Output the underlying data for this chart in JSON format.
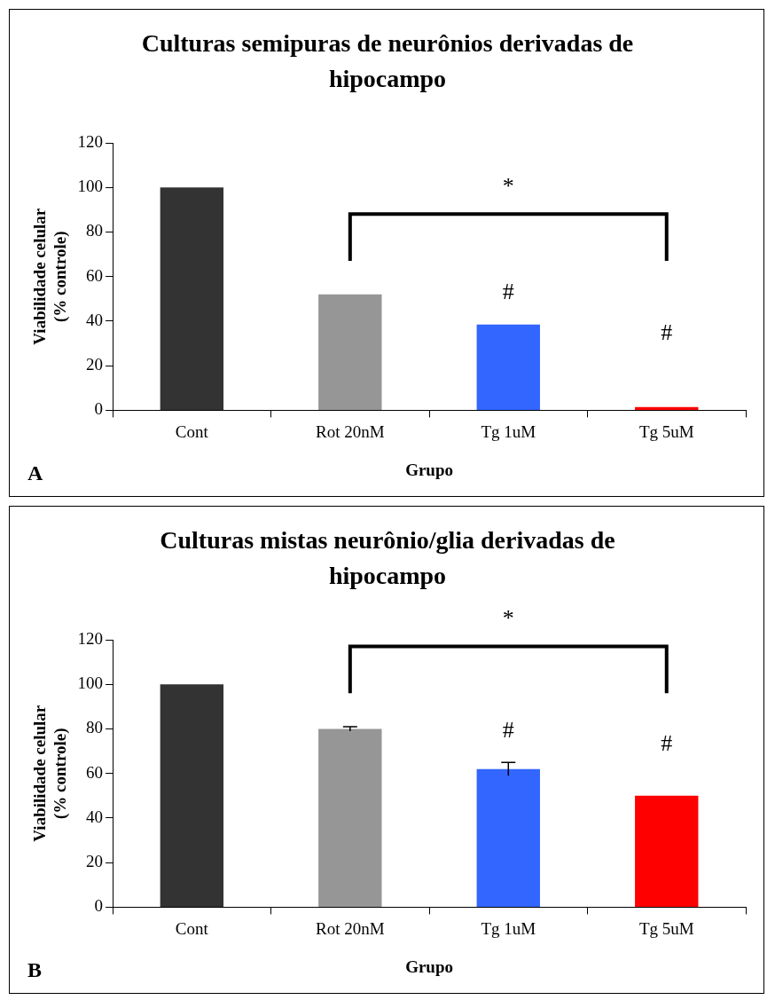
{
  "chart_data": [
    {
      "type": "bar",
      "title": "Culturas semipuras de neurônios derivadas de hipocampo",
      "xlabel": "Grupo",
      "ylabel": "Viabilidade celular (% controle)",
      "categories": [
        "Cont",
        "Rot 20nM",
        "Tg 1uM",
        "Tg 5uM"
      ],
      "values": [
        100,
        52,
        38.5,
        1.5
      ],
      "colors": [
        "#333333",
        "#969696",
        "#3366ff",
        "#ff0000"
      ],
      "ylim": [
        0,
        120
      ],
      "yticks": [
        0,
        20,
        40,
        60,
        80,
        100,
        120
      ],
      "grid": false,
      "annotations": [
        "*",
        "#",
        "#",
        "A"
      ]
    },
    {
      "type": "bar",
      "title": "Culturas mistas neurônio/glia derivadas de hipocampo",
      "xlabel": "Grupo",
      "ylabel": "Viabilidade celular (% controle)",
      "categories": [
        "Cont",
        "Rot 20nM",
        "Tg 1uM",
        "Tg 5uM"
      ],
      "values": [
        100,
        80,
        62,
        50
      ],
      "errors": [
        null,
        1,
        3,
        null
      ],
      "colors": [
        "#333333",
        "#969696",
        "#3366ff",
        "#ff0000"
      ],
      "ylim": [
        0,
        120
      ],
      "yticks": [
        0,
        20,
        40,
        60,
        80,
        100,
        120
      ],
      "grid": false,
      "annotations": [
        "*",
        "#",
        "#",
        "B"
      ]
    }
  ]
}
